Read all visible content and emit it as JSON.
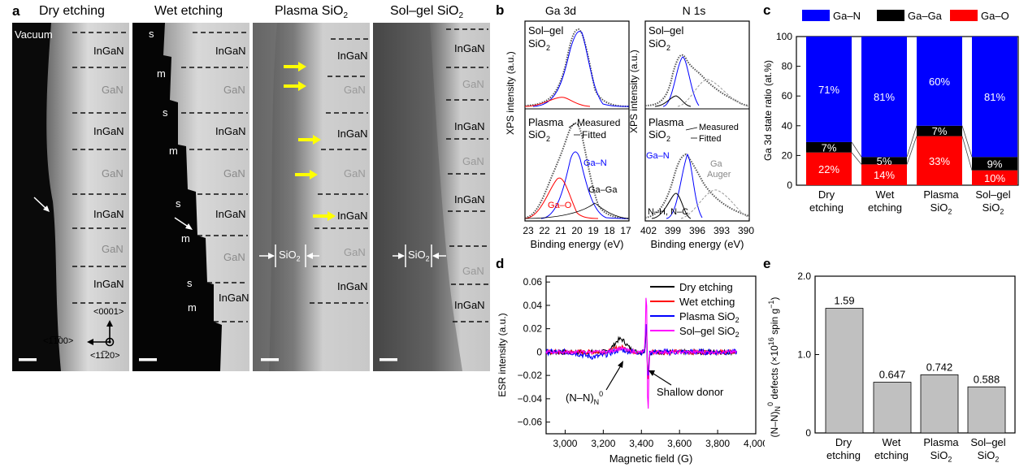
{
  "panel_a": {
    "label": "a",
    "images": [
      {
        "title": "Dry etching",
        "vacuum_label": "Vacuum",
        "layers": [
          "InGaN",
          "GaN",
          "InGaN",
          "GaN",
          "InGaN",
          "GaN",
          "InGaN"
        ],
        "axis_labels": [
          "<0001>",
          "<1̅1̅00>",
          "<11̅20>"
        ]
      },
      {
        "title": "Wet etching",
        "layers": [
          "InGaN",
          "GaN",
          "InGaN",
          "GaN",
          "InGaN",
          "GaN",
          "InGaN"
        ],
        "step_labels": [
          "s",
          "m",
          "s",
          "m",
          "s",
          "m",
          "s",
          "m"
        ]
      },
      {
        "title": "Plasma SiO",
        "title_sub": "2",
        "layers": [
          "InGaN",
          "GaN",
          "InGaN",
          "GaN",
          "InGaN",
          "GaN",
          "InGaN"
        ],
        "sio2_label": "SiO",
        "sio2_sub": "2"
      },
      {
        "title": "Sol–gel SiO",
        "title_sub": "2",
        "layers": [
          "InGaN",
          "GaN",
          "InGaN",
          "GaN",
          "InGaN",
          "GaN",
          "InGaN"
        ],
        "sio2_label": "SiO",
        "sio2_sub": "2"
      }
    ]
  },
  "chart_data": [
    {
      "panel": "b",
      "type": "line",
      "title_left": "Ga 3d",
      "title_right": "N 1s",
      "ylabel": "XPS intensity (a.u.)",
      "xlabel": "Binding energy (eV)",
      "left_xticks": [
        "23",
        "22",
        "21",
        "20",
        "19",
        "18",
        "17"
      ],
      "right_xticks": [
        "402",
        "399",
        "396",
        "393",
        "390"
      ],
      "top_sample_line1": "Sol–gel",
      "top_sample_line2": "SiO",
      "top_sample_sub": "2",
      "bottom_sample_line1": "Plasma",
      "bottom_sample_line2": "SiO",
      "bottom_sample_sub": "2",
      "measured": "Measured",
      "fitted": "Fitted",
      "components_left": [
        "Ga–N",
        "Ga–Ga",
        "Ga–O"
      ],
      "components_right": [
        "Ga–N",
        "Ga",
        "Auger",
        "N–H, N–C"
      ],
      "component_colors": {
        "Ga-N": "#0000ff",
        "Ga-O": "#ff0000",
        "Ga-Ga": "#000000"
      }
    },
    {
      "panel": "c",
      "type": "bar",
      "ylabel": "Ga 3d state ratio (at.%)",
      "ylim": [
        0,
        100
      ],
      "yticks": [
        "0",
        "20",
        "40",
        "60",
        "80",
        "100"
      ],
      "categories": [
        [
          "Dry",
          "etching"
        ],
        [
          "Wet",
          "etching"
        ],
        [
          "Plasma",
          "SiO2"
        ],
        [
          "Sol–gel",
          "SiO2"
        ]
      ],
      "category_sub": "2",
      "series": [
        {
          "name": "Ga–O",
          "color": "#ff0000",
          "values": [
            22,
            14,
            33,
            10
          ],
          "labels": [
            "22%",
            "14%",
            "33%",
            "10%"
          ]
        },
        {
          "name": "Ga–Ga",
          "color": "#000000",
          "values": [
            7,
            5,
            7,
            9
          ],
          "labels": [
            "7%",
            "5%",
            "7%",
            "9%"
          ]
        },
        {
          "name": "Ga–N",
          "color": "#0000ff",
          "values": [
            71,
            81,
            60,
            81
          ],
          "labels": [
            "71%",
            "81%",
            "60%",
            "81%"
          ]
        }
      ],
      "legend": [
        "Ga–N",
        "Ga–Ga",
        "Ga–O"
      ]
    },
    {
      "panel": "d",
      "type": "line",
      "xlabel": "Magnetic field (G)",
      "ylabel": "ESR intensity (a.u.)",
      "xlim": [
        2900,
        4000
      ],
      "ylim": [
        -0.07,
        0.065
      ],
      "xticks": [
        "3,000",
        "3,200",
        "3,400",
        "3,600",
        "3,800",
        "4,000"
      ],
      "yticks": [
        "0.06",
        "0.04",
        "0.02",
        "0",
        "−0.02",
        "−0.04",
        "−0.06"
      ],
      "series": [
        {
          "name": "Dry etching",
          "color": "#000000"
        },
        {
          "name": "Wet etching",
          "color": "#ff0000"
        },
        {
          "name": "Plasma SiO2",
          "color": "#0000ff"
        },
        {
          "name": "Sol–gel SiO2",
          "color": "#ff00ff"
        }
      ],
      "annotation_left": "(N–N)",
      "annotation_left_sub": "N",
      "annotation_left_sup": "0",
      "annotation_right": "Shallow donor"
    },
    {
      "panel": "e",
      "type": "bar",
      "ylabel": "(N–N)N0 defects (×1016 spin g−1)",
      "ylim": [
        0,
        2.0
      ],
      "yticks": [
        "0",
        "1.0",
        "2.0"
      ],
      "categories": [
        [
          "Dry",
          "etching"
        ],
        [
          "Wet",
          "etching"
        ],
        [
          "Plasma",
          "SiO2"
        ],
        [
          "Sol–gel",
          "SiO2"
        ]
      ],
      "values": [
        1.59,
        0.647,
        0.742,
        0.588
      ],
      "value_labels": [
        "1.59",
        "0.647",
        "0.742",
        "0.588"
      ],
      "bar_color": "#c0c0c0"
    }
  ]
}
